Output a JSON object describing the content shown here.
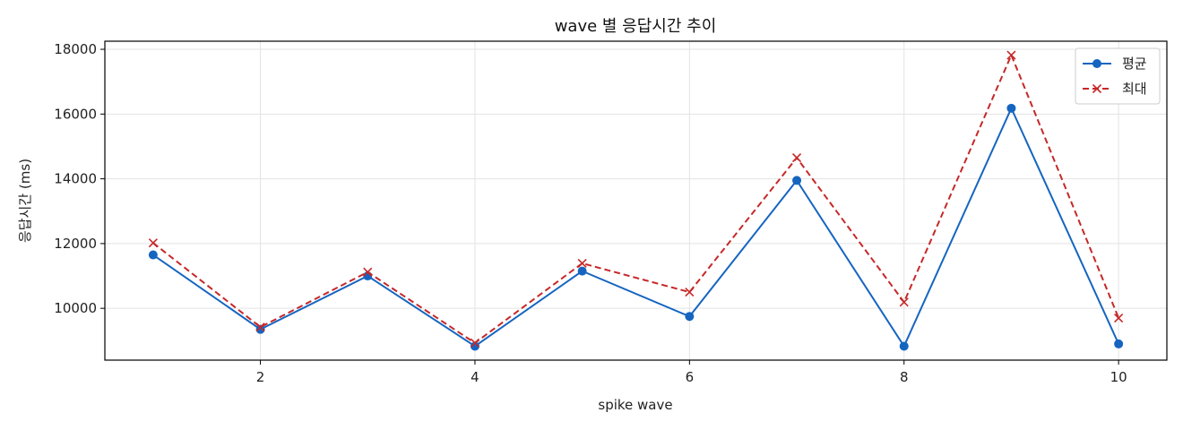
{
  "chart_data": {
    "type": "line",
    "title": "wave 별 응답시간 추이",
    "xlabel": "spike wave",
    "ylabel": "응답시간 (ms)",
    "x": [
      1,
      2,
      3,
      4,
      5,
      6,
      7,
      8,
      9,
      10
    ],
    "xlim": [
      0.55,
      10.45
    ],
    "ylim": [
      8400,
      18250
    ],
    "xticks": [
      2,
      4,
      6,
      8,
      10
    ],
    "yticks": [
      10000,
      12000,
      14000,
      16000,
      18000
    ],
    "grid": true,
    "legend_position": "top-right",
    "series": [
      {
        "name": "평균",
        "values": [
          11650,
          9350,
          11000,
          8830,
          11150,
          9750,
          13950,
          8830,
          16180,
          8900
        ],
        "color": "#1565c0",
        "line_style": "solid",
        "marker": "circle"
      },
      {
        "name": "최대",
        "values": [
          12020,
          9420,
          11120,
          8930,
          11390,
          10500,
          14650,
          10190,
          17820,
          9700
        ],
        "color": "#c62828",
        "line_style": "dashed",
        "marker": "x"
      }
    ]
  }
}
